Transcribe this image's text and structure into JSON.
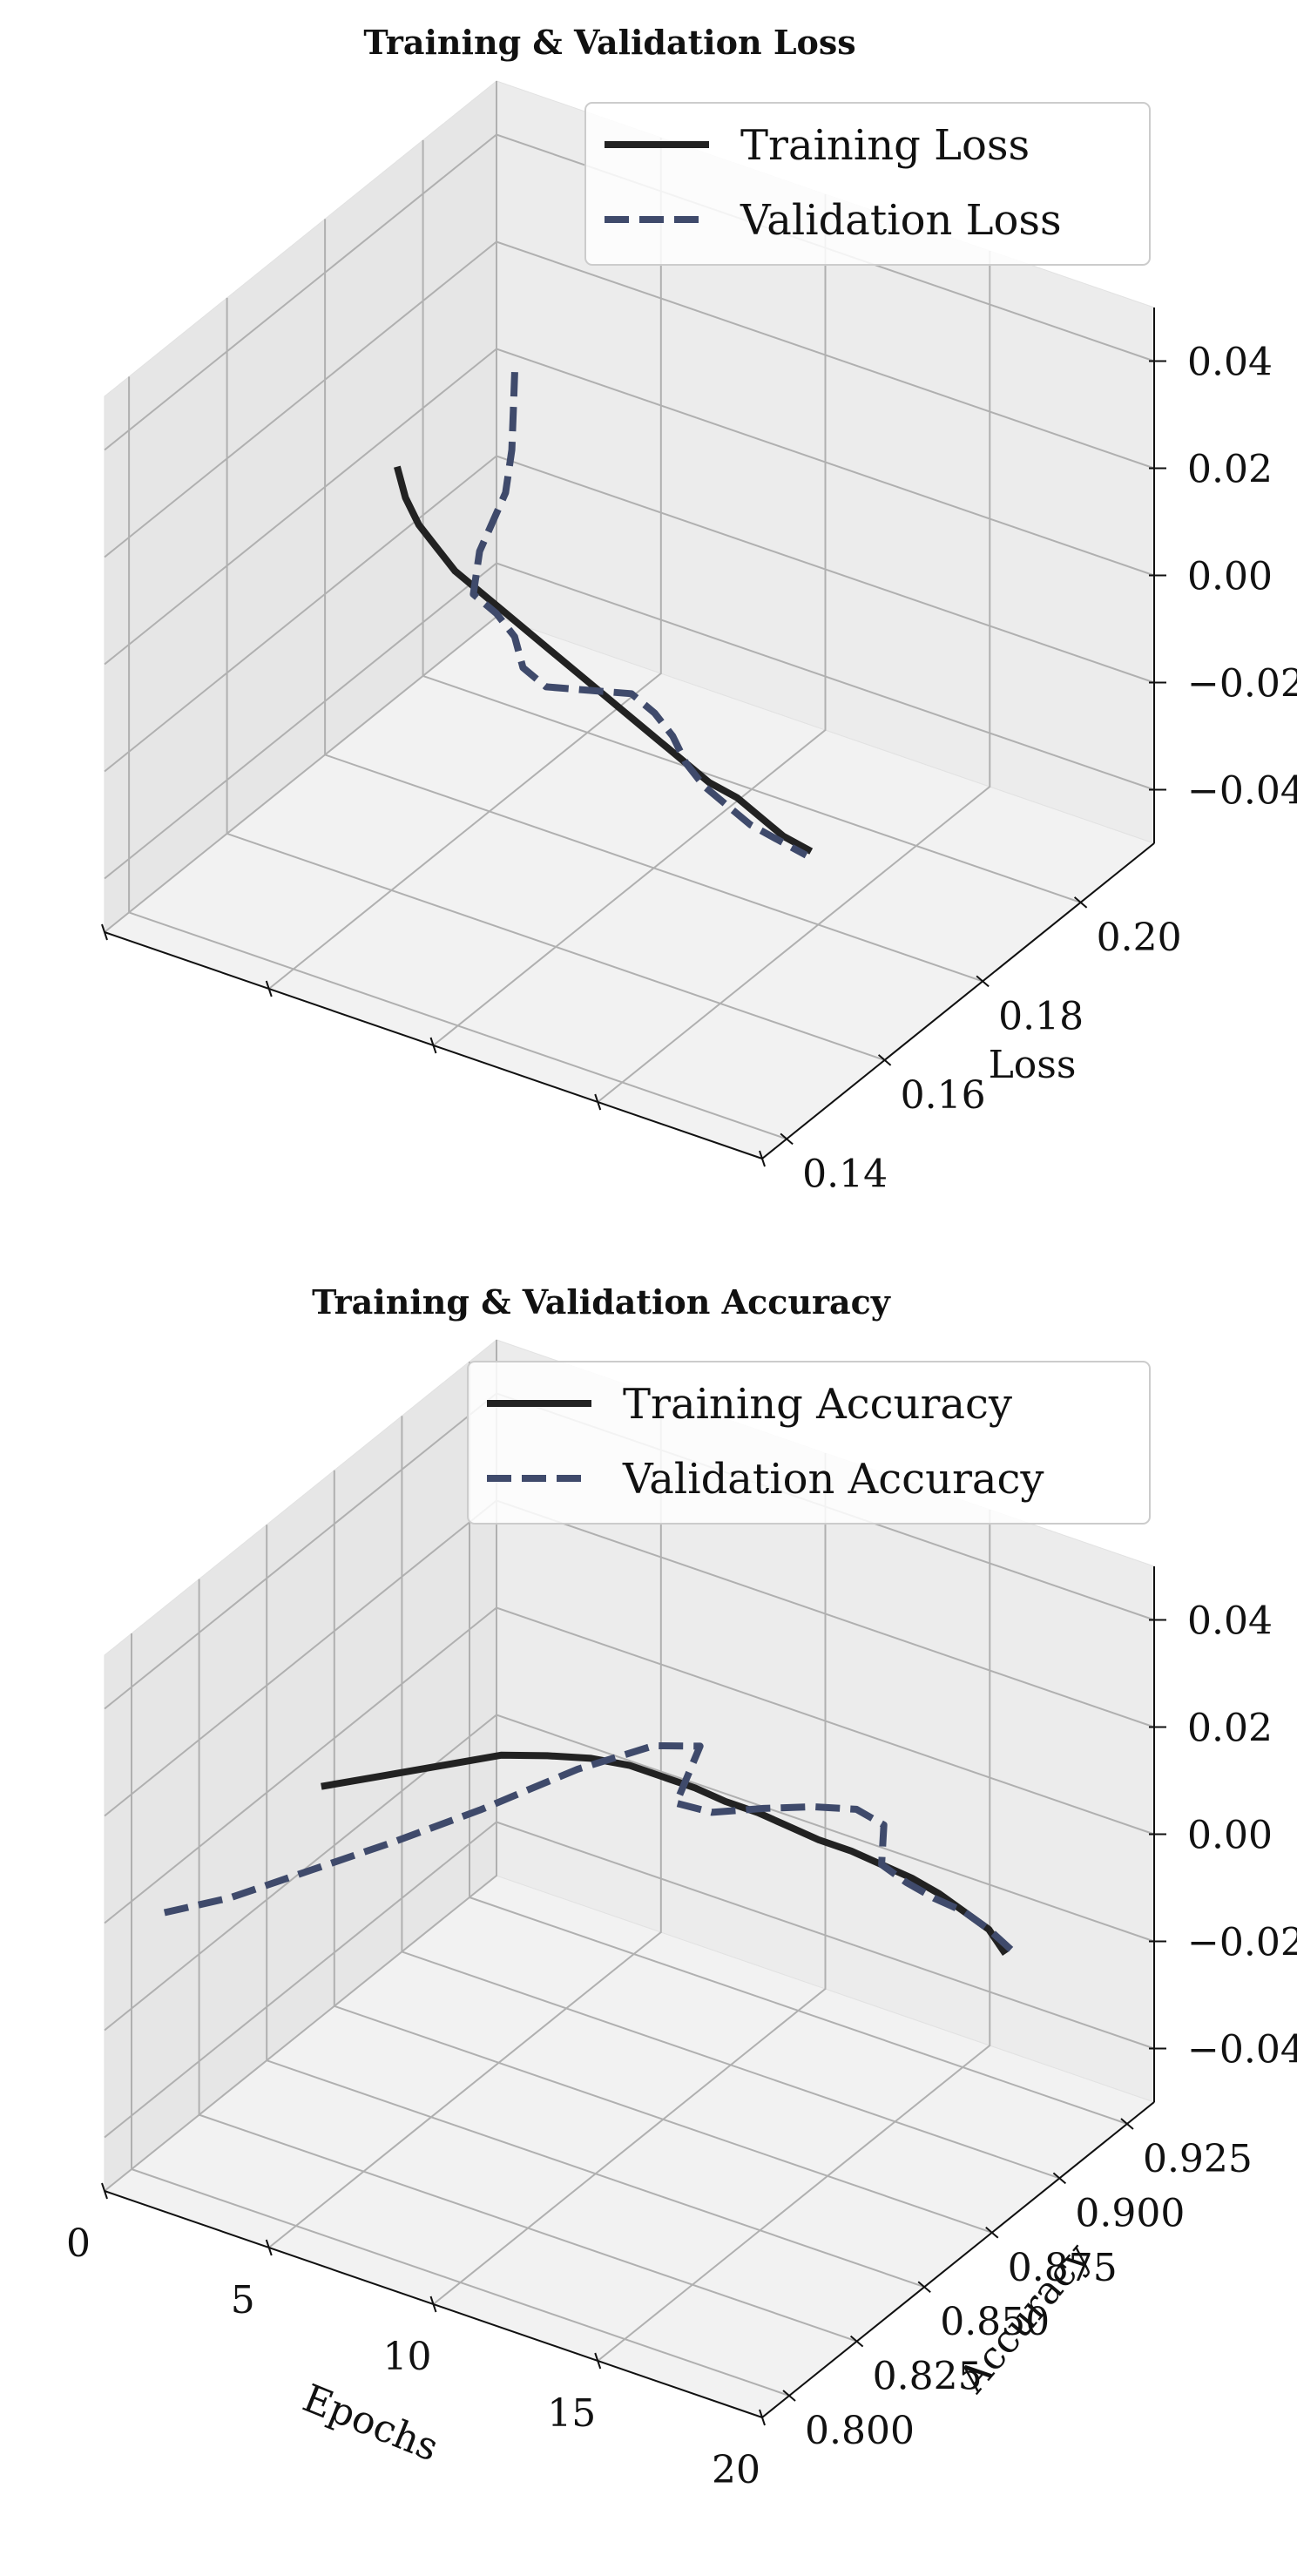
{
  "chart_data": [
    {
      "type": "line",
      "title": "Training & Validation Loss",
      "xlabel": "",
      "ylabel": "Loss",
      "zlabel": "",
      "x": [
        1,
        2,
        3,
        4,
        5,
        6,
        7,
        8,
        9,
        10,
        11,
        12,
        13,
        14,
        15,
        16,
        17,
        18,
        19,
        20
      ],
      "xlim": [
        0,
        20
      ],
      "ylim": [
        0.135,
        0.215
      ],
      "zlim": [
        -0.05,
        0.05
      ],
      "y_ticks": [
        "0.14",
        "0.16",
        "0.18",
        "0.20"
      ],
      "z_ticks": [
        "−0.04",
        "−0.02",
        "0.00",
        "0.02",
        "0.04"
      ],
      "legend_position": "upper-right",
      "series": [
        {
          "name": "Training Loss",
          "color": "#222222",
          "style": "solid",
          "values": [
            0.188,
            0.183,
            0.179,
            0.176,
            0.173,
            0.171,
            0.169,
            0.167,
            0.165,
            0.163,
            0.161,
            0.159,
            0.157,
            0.155,
            0.153,
            0.151,
            0.15,
            0.148,
            0.146,
            0.145
          ]
        },
        {
          "name": "Validation Loss",
          "color": "#3f4a6b",
          "style": "dashed",
          "values": [
            0.212,
            0.205,
            0.198,
            0.19,
            0.178,
            0.17,
            0.168,
            0.165,
            0.16,
            0.158,
            0.16,
            0.162,
            0.16,
            0.157,
            0.153,
            0.15,
            0.148,
            0.146,
            0.145,
            0.144
          ]
        }
      ]
    },
    {
      "type": "line",
      "title": "Training & Validation Accuracy",
      "xlabel": "Epochs",
      "ylabel": "Accuracy",
      "zlabel": "",
      "x": [
        1,
        2,
        3,
        4,
        5,
        6,
        7,
        8,
        9,
        10,
        11,
        12,
        13,
        14,
        15,
        16,
        17,
        18,
        19,
        20
      ],
      "xlim": [
        0,
        20
      ],
      "ylim": [
        0.79,
        0.935
      ],
      "zlim": [
        -0.05,
        0.05
      ],
      "x_ticks": [
        "0",
        "5",
        "10",
        "15",
        "20"
      ],
      "y_ticks": [
        "0.800",
        "0.825",
        "0.850",
        "0.875",
        "0.900",
        "0.925"
      ],
      "z_ticks": [
        "−0.04",
        "−0.02",
        "0.00",
        "0.02",
        "0.04"
      ],
      "legend_position": "upper-right",
      "series": [
        {
          "name": "Training Accuracy",
          "color": "#222222",
          "style": "solid",
          "values": [
            0.858,
            0.868,
            0.878,
            0.888,
            0.893,
            0.897,
            0.899,
            0.899,
            0.899,
            0.898,
            0.898,
            0.897,
            0.896,
            0.896,
            0.895,
            0.894,
            0.892,
            0.889,
            0.886,
            0.88
          ]
        },
        {
          "name": "Validation Accuracy",
          "color": "#3f4a6b",
          "style": "dashed",
          "values": [
            0.8,
            0.812,
            0.83,
            0.848,
            0.868,
            0.892,
            0.908,
            0.913,
            0.892,
            0.893,
            0.9,
            0.906,
            0.91,
            0.908,
            0.895,
            0.892,
            0.89,
            0.889,
            0.886,
            0.882
          ]
        }
      ]
    }
  ]
}
